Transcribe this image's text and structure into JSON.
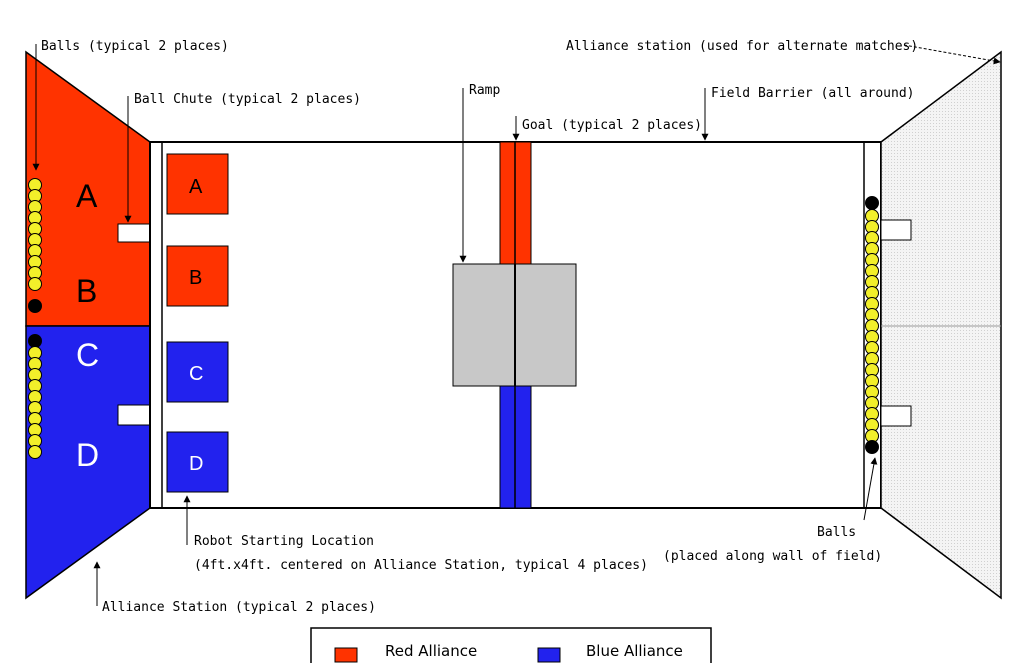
{
  "colors": {
    "red": "#ff3300",
    "blue": "#2222ee",
    "ball": "#f2ef2a",
    "ramp": "#c8c8c8",
    "grid_station": "#ececec"
  },
  "labels": {
    "balls_top": "Balls (typical 2 places)",
    "ball_chute": "Ball Chute (typical 2 places)",
    "ramp": "Ramp",
    "goal": "Goal (typical 2 places)",
    "field_barrier": "Field Barrier (all around)",
    "alliance_station_alt": "Alliance station (used for alternate matches)",
    "robot_start_1": "Robot Starting Location",
    "robot_start_2": "(4ft.x4ft. centered on Alliance Station, typical 4 places)",
    "alliance_station": "Alliance Station (typical 2 places)",
    "balls_right_1": "Balls",
    "balls_right_2": "(placed along wall of field)"
  },
  "stations": {
    "A": "A",
    "B": "B",
    "C": "C",
    "D": "D"
  },
  "start_boxes": {
    "A": "A",
    "B": "B",
    "C": "C",
    "D": "D"
  },
  "legend": {
    "red": "Red Alliance",
    "blue": "Blue Alliance"
  }
}
